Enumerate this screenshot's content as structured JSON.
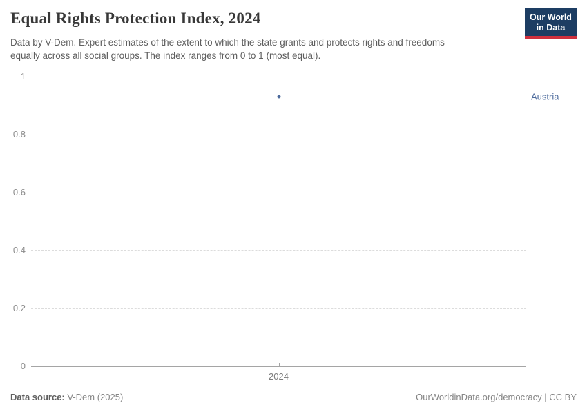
{
  "header": {
    "title": "Equal Rights Protection Index, 2024",
    "subtitle": "Data by V-Dem. Expert estimates of the extent to which the state grants and protects rights and freedoms\nequally across all social groups. The index ranges from 0 to 1 (most equal).",
    "logo": {
      "line1": "Our World",
      "line2": "in Data"
    }
  },
  "colors": {
    "accent_blue": "#4c6a9c",
    "logo_navy": "#1d3d63",
    "logo_red": "#cf303e",
    "gridline": "#dcdcdc",
    "axis": "#a5a5a5"
  },
  "chart_data": {
    "type": "scatter",
    "x": [
      2024
    ],
    "xticks": [
      2024
    ],
    "series": [
      {
        "name": "Austria",
        "values": [
          0.93
        ],
        "color": "#4c6a9c"
      }
    ],
    "title": "Equal Rights Protection Index, 2024",
    "xlabel": "",
    "ylabel": "",
    "ylim": [
      0,
      1
    ],
    "yticks": [
      0,
      0.2,
      0.4,
      0.6,
      0.8,
      1
    ],
    "grid": true,
    "legend_position": "right-of-point"
  },
  "footer": {
    "source_label": "Data source:",
    "source_value": "V-Dem (2025)",
    "credit": "OurWorldinData.org/democracy | CC BY"
  }
}
